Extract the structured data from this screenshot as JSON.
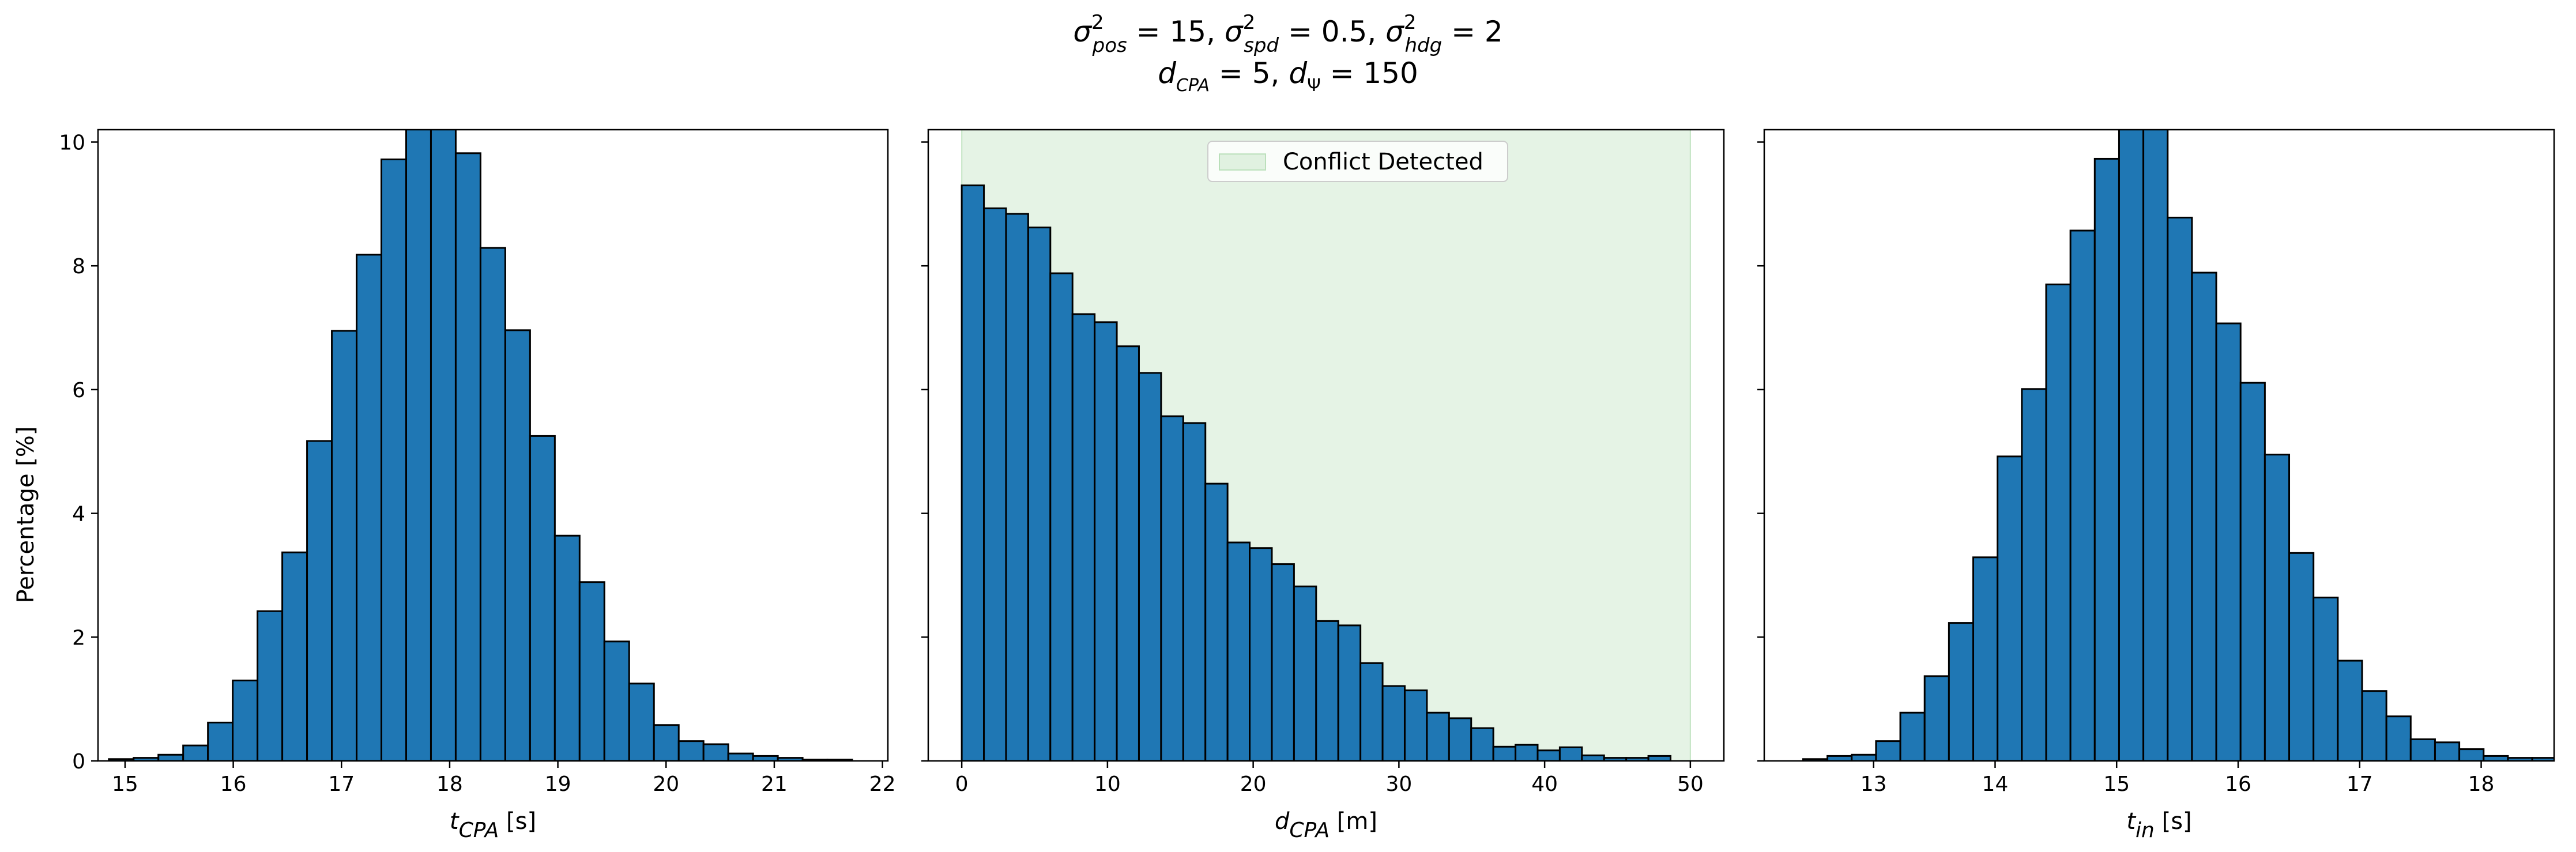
{
  "figure": {
    "title_line1": "σ²pos = 15, σ²spd = 0.5, σ²hdg = 2",
    "title_line2": "dCPA = 5, dΨ = 150",
    "ylabel": "Percentage [%]"
  },
  "colors": {
    "bar_fill": "#1f77b4",
    "bar_edge": "#000000",
    "span_fill": "#2ca02c"
  },
  "chart_data": [
    {
      "type": "bar",
      "xlabel": "tCPA [s]",
      "ylabel": "Percentage [%]",
      "xlim": [
        14.75,
        22.05
      ],
      "ylim": [
        0,
        10.2
      ],
      "x_ticks": [
        15,
        16,
        17,
        18,
        19,
        20,
        21,
        22
      ],
      "y_ticks": [
        0,
        2,
        4,
        6,
        8,
        10
      ],
      "bin_start": 14.85,
      "bin_width": 0.229,
      "values": [
        0.03,
        0.05,
        0.1,
        0.25,
        0.62,
        1.3,
        2.42,
        3.37,
        5.17,
        6.95,
        8.18,
        9.72,
        10.3,
        10.3,
        9.82,
        8.29,
        6.96,
        5.25,
        3.64,
        2.89,
        1.93,
        1.25,
        0.58,
        0.32,
        0.27,
        0.12,
        0.08,
        0.05,
        0.02,
        0.02
      ]
    },
    {
      "type": "bar",
      "xlabel": "dCPA [m]",
      "xlim": [
        -2.3,
        52.3
      ],
      "ylim": [
        0,
        10.2
      ],
      "x_ticks": [
        0,
        10,
        20,
        30,
        40,
        50
      ],
      "y_ticks": [
        0,
        2,
        4,
        6,
        8,
        10
      ],
      "bin_start": 0,
      "bin_width": 1.52,
      "values": [
        9.3,
        8.93,
        8.84,
        8.62,
        7.88,
        7.22,
        7.09,
        6.7,
        6.27,
        5.57,
        5.46,
        4.48,
        3.53,
        3.44,
        3.18,
        2.82,
        2.26,
        2.19,
        1.58,
        1.21,
        1.14,
        0.78,
        0.69,
        0.53,
        0.23,
        0.26,
        0.17,
        0.22,
        0.09,
        0.05,
        0.05,
        0.08
      ],
      "span": {
        "x0": 0,
        "x1": 50,
        "label": "Conflict Detected"
      },
      "legend_position": "upper center"
    },
    {
      "type": "bar",
      "xlabel": "tin [s]",
      "xlim": [
        12.1,
        18.6
      ],
      "ylim": [
        0,
        10.2
      ],
      "x_ticks": [
        13,
        14,
        15,
        16,
        17,
        18
      ],
      "y_ticks": [
        0,
        2,
        4,
        6,
        8,
        10
      ],
      "bin_start": 12.42,
      "bin_width": 0.2,
      "values": [
        0.03,
        0.08,
        0.1,
        0.32,
        0.78,
        1.37,
        2.23,
        3.29,
        4.92,
        6.01,
        7.7,
        8.57,
        9.73,
        10.3,
        10.21,
        8.78,
        7.89,
        7.07,
        6.11,
        4.95,
        3.36,
        2.64,
        1.62,
        1.13,
        0.72,
        0.35,
        0.3,
        0.19,
        0.08,
        0.05,
        0.05
      ]
    }
  ]
}
